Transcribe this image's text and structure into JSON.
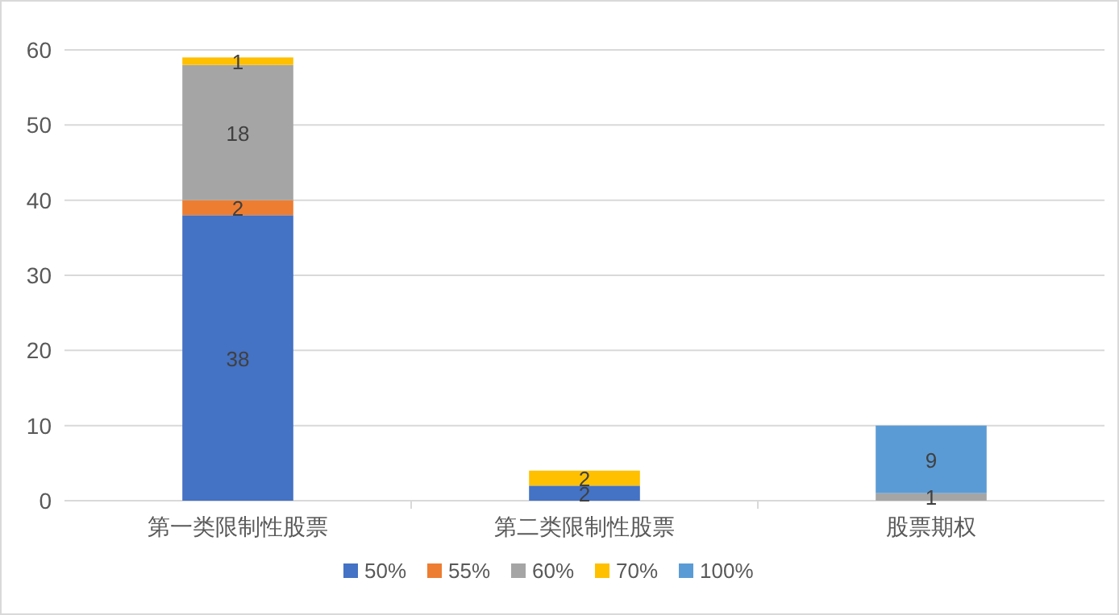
{
  "chart_data": {
    "type": "bar",
    "stacked": true,
    "categories": [
      "第一类限制性股票",
      "第二类限制性股票",
      "股票期权"
    ],
    "series": [
      {
        "name": "50%",
        "color": "#4472c4",
        "values": [
          38,
          2,
          null
        ]
      },
      {
        "name": "55%",
        "color": "#ed7d31",
        "values": [
          2,
          null,
          null
        ]
      },
      {
        "name": "60%",
        "color": "#a5a5a5",
        "values": [
          18,
          null,
          1
        ]
      },
      {
        "name": "70%",
        "color": "#ffc000",
        "values": [
          1,
          2,
          null
        ]
      },
      {
        "name": "100%",
        "color": "#5b9bd5",
        "values": [
          null,
          null,
          9
        ]
      }
    ],
    "ylim": [
      0,
      60
    ],
    "yticks": [
      0,
      10,
      20,
      30,
      40,
      50,
      60
    ],
    "grid": "y",
    "legend": "bottom",
    "data_labels": true
  }
}
